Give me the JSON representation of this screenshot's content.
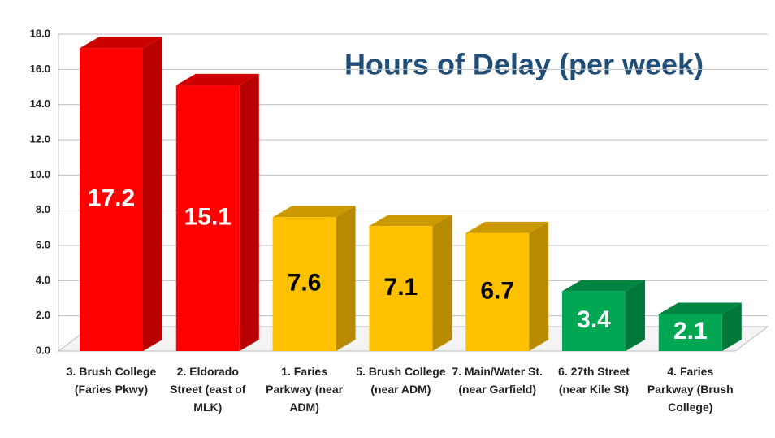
{
  "chart_data": {
    "type": "bar3d",
    "title": "Hours of Delay (per week)",
    "categories": [
      "3. Brush College (Faries Pkwy)",
      "2. Eldorado Street (east of MLK)",
      "1. Faries Parkway (near ADM)",
      "5. Brush College (near ADM)",
      "7. Main/Water St. (near Garfield)",
      "6. 27th Street (near Kile St)",
      "4. Faries Parkway (Brush College)"
    ],
    "values": [
      17.2,
      15.1,
      7.6,
      7.1,
      6.7,
      3.4,
      2.1
    ],
    "colors": [
      "#ff0000",
      "#ff0000",
      "#ffc000",
      "#ffc000",
      "#ffc000",
      "#00a651",
      "#00a651"
    ],
    "value_label_colors": [
      "#ffffff",
      "#ffffff",
      "#000000",
      "#000000",
      "#000000",
      "#ffffff",
      "#ffffff"
    ],
    "ylim": [
      0,
      18
    ],
    "yticks": [
      {
        "value": 0,
        "label": "0.0"
      },
      {
        "value": 2,
        "label": "2.0"
      },
      {
        "value": 4,
        "label": "4.0"
      },
      {
        "value": 6,
        "label": "6.0"
      },
      {
        "value": 8,
        "label": "8.0"
      },
      {
        "value": 10,
        "label": "10.0"
      },
      {
        "value": 12,
        "label": "12.0"
      },
      {
        "value": 14,
        "label": "14.0"
      },
      {
        "value": 16,
        "label": "16.0"
      },
      {
        "value": 18,
        "label": "18.0"
      }
    ],
    "grid": true
  }
}
